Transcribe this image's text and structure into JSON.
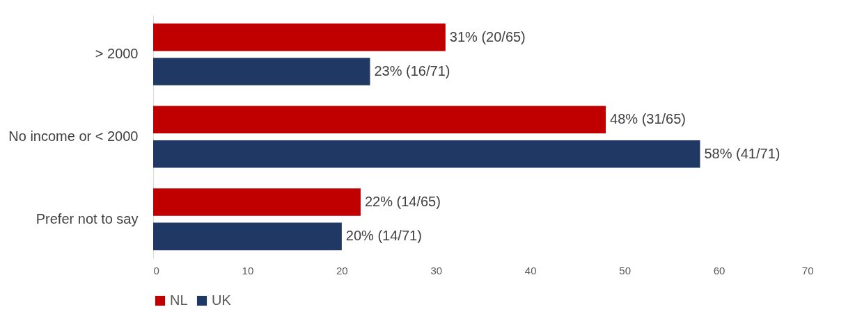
{
  "chart_data": {
    "type": "bar",
    "orientation": "horizontal",
    "categories": [
      "> 2000",
      "No income or  < 2000",
      "Prefer not to say"
    ],
    "series": [
      {
        "name": "NL",
        "color": "#c00000",
        "values": [
          31,
          48,
          22
        ],
        "value_labels": [
          "31% (20/65)",
          "48% (31/65)",
          "22% (14/65)"
        ]
      },
      {
        "name": "UK",
        "color": "#203864",
        "values": [
          23,
          58,
          20
        ],
        "value_labels": [
          "23% (16/71)",
          "58% (41/71)",
          "20% (14/71)"
        ]
      }
    ],
    "xlim": [
      0,
      70
    ],
    "xticks": [
      0,
      10,
      20,
      30,
      40,
      50,
      60,
      70
    ],
    "grid": false,
    "legend": "bottom"
  }
}
